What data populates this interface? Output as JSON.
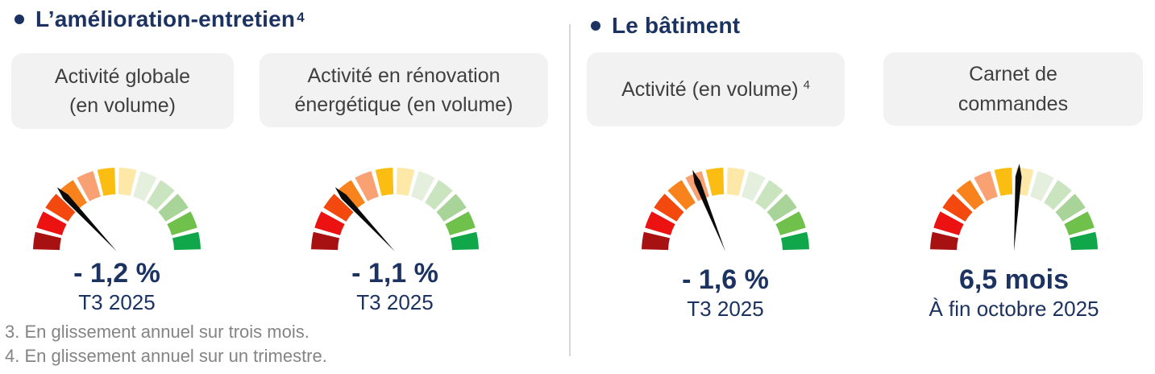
{
  "colors": {
    "navy": "#1c3361",
    "label_text": "#3f3f3f",
    "label_bg": "#f2f2f2",
    "footnote": "#848484",
    "divider": "#d9d9d9",
    "needle": "#0a0a0a"
  },
  "gauge_palette": [
    "#a81111",
    "#ec1212",
    "#f3490f",
    "#f8821c",
    "#f9a173",
    "#fcbd12",
    "#fde8a7",
    "#e4efdd",
    "#cbe4c0",
    "#a8d399",
    "#6fc14b",
    "#10a74a"
  ],
  "sections": [
    {
      "title": "L’amélioration-entretien",
      "title_superscript": "4",
      "gauges": [
        {
          "label_lines": [
            "Activité globale",
            "(en volume)"
          ],
          "value": "- 1,2 %",
          "period": "T3 2025",
          "needle_angle_deg": 133
        },
        {
          "label_lines": [
            "Activité en rénovation",
            "énergétique (en volume)"
          ],
          "value": "- 1,1 %",
          "period": "T3 2025",
          "needle_angle_deg": 133
        }
      ]
    },
    {
      "title": "Le bâtiment",
      "gauges": [
        {
          "label_lines": [
            "Activité (en volume)"
          ],
          "label_superscript": "4",
          "value": "- 1,6 %",
          "period": "T3 2025",
          "needle_angle_deg": 112
        },
        {
          "label_lines": [
            "Carnet de",
            "commandes"
          ],
          "value": "6,5 mois",
          "period": "À fin octobre 2025",
          "needle_angle_deg": 86.5
        }
      ]
    }
  ],
  "footnotes": [
    "3. En glissement annuel sur trois mois.",
    "4. En glissement annuel sur un trimestre."
  ],
  "chart_data": [
    {
      "type": "gauge",
      "group": "L’amélioration-entretien",
      "title": "Activité globale (en volume)",
      "value": -1.2,
      "unit": "%",
      "value_label": "- 1,2 %",
      "period": "T3 2025",
      "segments": 12,
      "scale": "red (left) to green (right), semicircle 180°",
      "needle_angle_deg": 133
    },
    {
      "type": "gauge",
      "group": "L’amélioration-entretien",
      "title": "Activité en rénovation énergétique (en volume)",
      "value": -1.1,
      "unit": "%",
      "value_label": "- 1,1 %",
      "period": "T3 2025",
      "segments": 12,
      "scale": "red (left) to green (right), semicircle 180°",
      "needle_angle_deg": 133
    },
    {
      "type": "gauge",
      "group": "Le bâtiment",
      "title": "Activité (en volume)",
      "value": -1.6,
      "unit": "%",
      "value_label": "- 1,6 %",
      "period": "T3 2025",
      "segments": 12,
      "scale": "red (left) to green (right), semicircle 180°",
      "needle_angle_deg": 112
    },
    {
      "type": "gauge",
      "group": "Le bâtiment",
      "title": "Carnet de commandes",
      "value": 6.5,
      "unit": "mois",
      "value_label": "6,5 mois",
      "period": "À fin octobre 2025",
      "segments": 12,
      "scale": "red (left) to green (right), semicircle 180°",
      "needle_angle_deg": 86.5
    }
  ]
}
